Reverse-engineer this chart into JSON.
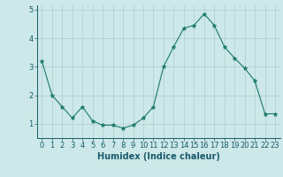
{
  "x": [
    0,
    1,
    2,
    3,
    4,
    5,
    6,
    7,
    8,
    9,
    10,
    11,
    12,
    13,
    14,
    15,
    16,
    17,
    18,
    19,
    20,
    21,
    22,
    23
  ],
  "y": [
    3.2,
    2.0,
    1.6,
    1.2,
    1.6,
    1.1,
    0.95,
    0.95,
    0.85,
    0.95,
    1.2,
    1.6,
    3.0,
    3.7,
    4.35,
    4.45,
    4.85,
    4.45,
    3.7,
    3.3,
    2.95,
    2.5,
    1.35,
    1.35
  ],
  "line_color": "#1a7a6a",
  "marker": "*",
  "marker_size": 3.5,
  "background_color": "#cce8e8",
  "grid_color_major": "#b0cccc",
  "grid_color_minor": "#c4dede",
  "xlabel": "Humidex (Indice chaleur)",
  "ylim": [
    0.5,
    5.15
  ],
  "xlim": [
    -0.5,
    23.5
  ],
  "yticks": [
    1,
    2,
    3,
    4,
    5
  ],
  "xticks": [
    0,
    1,
    2,
    3,
    4,
    5,
    6,
    7,
    8,
    9,
    10,
    11,
    12,
    13,
    14,
    15,
    16,
    17,
    18,
    19,
    20,
    21,
    22,
    23
  ],
  "tick_color": "#1a5a6a",
  "label_fontsize": 7,
  "tick_fontsize": 6
}
